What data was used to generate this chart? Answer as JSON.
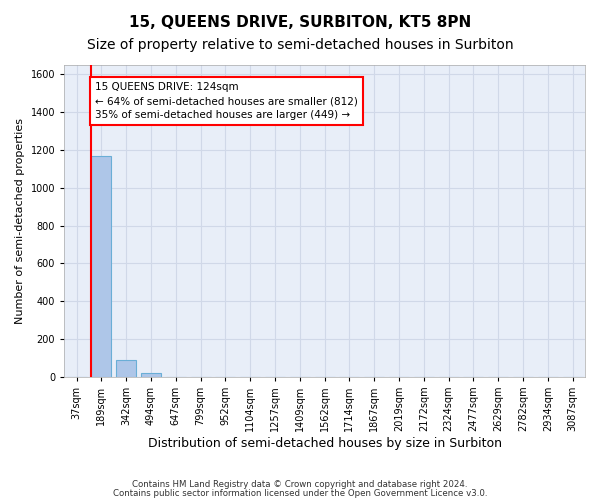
{
  "title": "15, QUEENS DRIVE, SURBITON, KT5 8PN",
  "subtitle": "Size of property relative to semi-detached houses in Surbiton",
  "xlabel": "Distribution of semi-detached houses by size in Surbiton",
  "ylabel": "Number of semi-detached properties",
  "footer_line1": "Contains HM Land Registry data © Crown copyright and database right 2024.",
  "footer_line2": "Contains public sector information licensed under the Open Government Licence v3.0.",
  "bin_labels": [
    "37sqm",
    "189sqm",
    "342sqm",
    "494sqm",
    "647sqm",
    "799sqm",
    "952sqm",
    "1104sqm",
    "1257sqm",
    "1409sqm",
    "1562sqm",
    "1714sqm",
    "1867sqm",
    "2019sqm",
    "2172sqm",
    "2324sqm",
    "2477sqm",
    "2629sqm",
    "2782sqm",
    "2934sqm",
    "3087sqm"
  ],
  "bar_values": [
    0,
    1170,
    90,
    20,
    0,
    0,
    0,
    0,
    0,
    0,
    0,
    0,
    0,
    0,
    0,
    0,
    0,
    0,
    0,
    0,
    0
  ],
  "bar_color": "#aec6e8",
  "bar_edge_color": "#6aaed6",
  "property_line_color": "red",
  "property_line_x": 0.6,
  "annotation_line1": "15 QUEENS DRIVE: 124sqm",
  "annotation_line2": "← 64% of semi-detached houses are smaller (812)",
  "annotation_line3": "35% of semi-detached houses are larger (449) →",
  "annotation_box_color": "white",
  "annotation_box_edge_color": "red",
  "ylim": [
    0,
    1650
  ],
  "yticks": [
    0,
    200,
    400,
    600,
    800,
    1000,
    1200,
    1400,
    1600
  ],
  "grid_color": "#d0d8e8",
  "bg_color": "#e8eef8",
  "title_fontsize": 11,
  "subtitle_fontsize": 10
}
